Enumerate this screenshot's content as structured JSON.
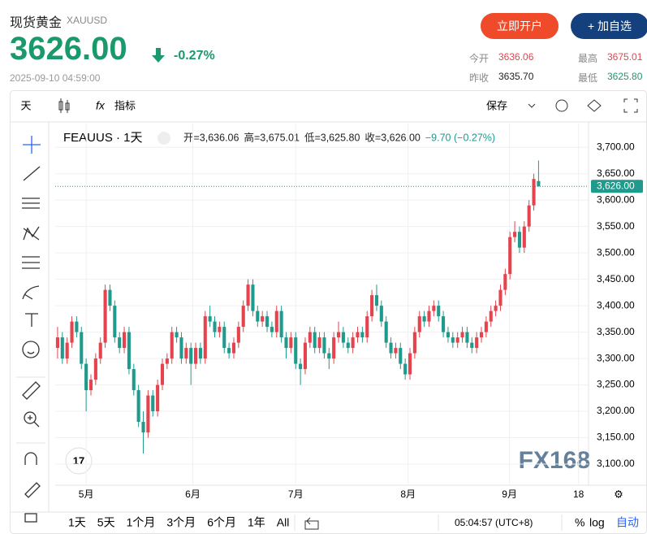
{
  "header": {
    "title": "现货黄金",
    "symbol": "XAUUSD",
    "price": "3626.00",
    "change": "-0.27%",
    "timestamp": "2025-09-10 04:59:00",
    "buttons": [
      "立即开户",
      "+ 加自选"
    ],
    "stats": [
      {
        "label": "今开",
        "value": "3636.06"
      },
      {
        "label": "最高",
        "value": "3675.01"
      },
      {
        "label": "昨收",
        "value": "3635.70"
      },
      {
        "label": "最低",
        "value": "3625.80"
      }
    ]
  },
  "toolbar": {
    "interval": "天",
    "indicators": "指标",
    "save": "保存"
  },
  "bottom_bar": {
    "ranges": [
      "1天",
      "5天",
      "1个月",
      "3个月",
      "6个月",
      "1年",
      "All"
    ],
    "clock": "05:04:57 (UTC+8)",
    "percent": "%",
    "log": "log",
    "auto": "自动"
  },
  "watermark": "FX168",
  "chart_data": {
    "type": "candlestick",
    "title": "FEAUUS · 1天",
    "ohlc_legend": [
      "开=3,636.06",
      "高=3,675.01",
      "低=3,625.80",
      "收=3,626.00",
      "−9.70 (−0.27%)"
    ],
    "up_color": "#e5434d",
    "down_color": "#1f9a8c",
    "candles": [
      [
        3320,
        3360,
        3300,
        3340
      ],
      [
        3340,
        3350,
        3290,
        3300
      ],
      [
        3300,
        3340,
        3290,
        3330
      ],
      [
        3330,
        3380,
        3320,
        3370
      ],
      [
        3370,
        3380,
        3340,
        3350
      ],
      [
        3350,
        3360,
        3280,
        3290
      ],
      [
        3290,
        3300,
        3200,
        3240
      ],
      [
        3240,
        3270,
        3230,
        3260
      ],
      [
        3260,
        3310,
        3250,
        3300
      ],
      [
        3300,
        3340,
        3290,
        3330
      ],
      [
        3330,
        3440,
        3320,
        3430
      ],
      [
        3430,
        3440,
        3390,
        3400
      ],
      [
        3400,
        3410,
        3330,
        3340
      ],
      [
        3340,
        3350,
        3310,
        3320
      ],
      [
        3320,
        3360,
        3310,
        3350
      ],
      [
        3350,
        3360,
        3270,
        3280
      ],
      [
        3280,
        3290,
        3230,
        3240
      ],
      [
        3240,
        3250,
        3170,
        3180
      ],
      [
        3180,
        3200,
        3120,
        3160
      ],
      [
        3160,
        3240,
        3150,
        3230
      ],
      [
        3230,
        3240,
        3190,
        3200
      ],
      [
        3200,
        3260,
        3190,
        3250
      ],
      [
        3250,
        3300,
        3240,
        3290
      ],
      [
        3290,
        3310,
        3280,
        3300
      ],
      [
        3300,
        3360,
        3290,
        3350
      ],
      [
        3350,
        3360,
        3330,
        3340
      ],
      [
        3340,
        3350,
        3290,
        3300
      ],
      [
        3300,
        3330,
        3290,
        3320
      ],
      [
        3320,
        3330,
        3250,
        3290
      ],
      [
        3290,
        3330,
        3280,
        3320
      ],
      [
        3320,
        3330,
        3290,
        3300
      ],
      [
        3300,
        3390,
        3290,
        3380
      ],
      [
        3380,
        3400,
        3360,
        3370
      ],
      [
        3370,
        3380,
        3340,
        3350
      ],
      [
        3350,
        3370,
        3340,
        3360
      ],
      [
        3360,
        3370,
        3310,
        3320
      ],
      [
        3320,
        3330,
        3300,
        3310
      ],
      [
        3310,
        3340,
        3300,
        3330
      ],
      [
        3330,
        3370,
        3320,
        3360
      ],
      [
        3360,
        3410,
        3350,
        3400
      ],
      [
        3400,
        3450,
        3390,
        3440
      ],
      [
        3440,
        3450,
        3380,
        3390
      ],
      [
        3390,
        3400,
        3360,
        3370
      ],
      [
        3370,
        3390,
        3360,
        3380
      ],
      [
        3380,
        3390,
        3350,
        3360
      ],
      [
        3360,
        3370,
        3340,
        3350
      ],
      [
        3350,
        3400,
        3340,
        3390
      ],
      [
        3390,
        3400,
        3330,
        3340
      ],
      [
        3340,
        3350,
        3300,
        3320
      ],
      [
        3320,
        3350,
        3310,
        3340
      ],
      [
        3340,
        3350,
        3280,
        3290
      ],
      [
        3290,
        3300,
        3250,
        3280
      ],
      [
        3280,
        3340,
        3270,
        3330
      ],
      [
        3330,
        3360,
        3320,
        3350
      ],
      [
        3350,
        3360,
        3310,
        3320
      ],
      [
        3320,
        3350,
        3310,
        3340
      ],
      [
        3340,
        3350,
        3300,
        3310
      ],
      [
        3310,
        3320,
        3280,
        3300
      ],
      [
        3300,
        3350,
        3290,
        3340
      ],
      [
        3340,
        3370,
        3330,
        3350
      ],
      [
        3350,
        3360,
        3320,
        3330
      ],
      [
        3330,
        3340,
        3310,
        3320
      ],
      [
        3320,
        3350,
        3310,
        3340
      ],
      [
        3340,
        3360,
        3330,
        3350
      ],
      [
        3350,
        3360,
        3330,
        3340
      ],
      [
        3340,
        3390,
        3330,
        3380
      ],
      [
        3380,
        3430,
        3370,
        3420
      ],
      [
        3420,
        3440,
        3390,
        3400
      ],
      [
        3400,
        3410,
        3360,
        3370
      ],
      [
        3370,
        3380,
        3320,
        3330
      ],
      [
        3330,
        3340,
        3300,
        3310
      ],
      [
        3310,
        3330,
        3300,
        3320
      ],
      [
        3320,
        3330,
        3280,
        3290
      ],
      [
        3290,
        3300,
        3260,
        3270
      ],
      [
        3270,
        3320,
        3260,
        3310
      ],
      [
        3310,
        3360,
        3300,
        3350
      ],
      [
        3350,
        3390,
        3340,
        3380
      ],
      [
        3380,
        3390,
        3360,
        3370
      ],
      [
        3370,
        3400,
        3360,
        3390
      ],
      [
        3390,
        3410,
        3380,
        3400
      ],
      [
        3400,
        3410,
        3370,
        3380
      ],
      [
        3380,
        3390,
        3340,
        3350
      ],
      [
        3350,
        3360,
        3330,
        3340
      ],
      [
        3340,
        3350,
        3320,
        3330
      ],
      [
        3330,
        3350,
        3320,
        3340
      ],
      [
        3340,
        3360,
        3330,
        3350
      ],
      [
        3350,
        3360,
        3320,
        3330
      ],
      [
        3330,
        3340,
        3310,
        3320
      ],
      [
        3320,
        3350,
        3310,
        3340
      ],
      [
        3340,
        3360,
        3330,
        3350
      ],
      [
        3350,
        3380,
        3340,
        3370
      ],
      [
        3370,
        3400,
        3360,
        3390
      ],
      [
        3390,
        3410,
        3380,
        3400
      ],
      [
        3400,
        3440,
        3390,
        3430
      ],
      [
        3430,
        3470,
        3420,
        3460
      ],
      [
        3460,
        3540,
        3450,
        3530
      ],
      [
        3530,
        3560,
        3520,
        3540
      ],
      [
        3540,
        3550,
        3500,
        3510
      ],
      [
        3510,
        3560,
        3500,
        3550
      ],
      [
        3550,
        3600,
        3540,
        3590
      ],
      [
        3590,
        3650,
        3580,
        3640
      ],
      [
        3636.06,
        3675.01,
        3625.8,
        3626.0
      ]
    ],
    "xlim": [
      -0.5,
      111.5
    ],
    "xticks": [
      {
        "value": 6,
        "label": "5月"
      },
      {
        "value": 28.4,
        "label": "6月"
      },
      {
        "value": 50,
        "label": "7月"
      },
      {
        "value": 73.6,
        "label": "8月"
      },
      {
        "value": 94.9,
        "label": "9月"
      },
      {
        "value": 109.4,
        "label": "18"
      }
    ],
    "ylim": [
      3060,
      3745
    ],
    "yticks": [
      {
        "value": 3100,
        "label": "3,100.00"
      },
      {
        "value": 3150,
        "label": "3,150.00"
      },
      {
        "value": 3200,
        "label": "3,200.00"
      },
      {
        "value": 3250,
        "label": "3,250.00"
      },
      {
        "value": 3300,
        "label": "3,300.00"
      },
      {
        "value": 3350,
        "label": "3,350.00"
      },
      {
        "value": 3400,
        "label": "3,400.00"
      },
      {
        "value": 3450,
        "label": "3,450.00"
      },
      {
        "value": 3500,
        "label": "3,500.00"
      },
      {
        "value": 3550,
        "label": "3,550.00"
      },
      {
        "value": 3600,
        "label": "3,600.00"
      },
      {
        "value": 3650,
        "label": "3,650.00"
      },
      {
        "value": 3700,
        "label": "3,700.00"
      }
    ],
    "last_price": {
      "value": 3626,
      "label": "3,626.00"
    },
    "grid": true
  }
}
